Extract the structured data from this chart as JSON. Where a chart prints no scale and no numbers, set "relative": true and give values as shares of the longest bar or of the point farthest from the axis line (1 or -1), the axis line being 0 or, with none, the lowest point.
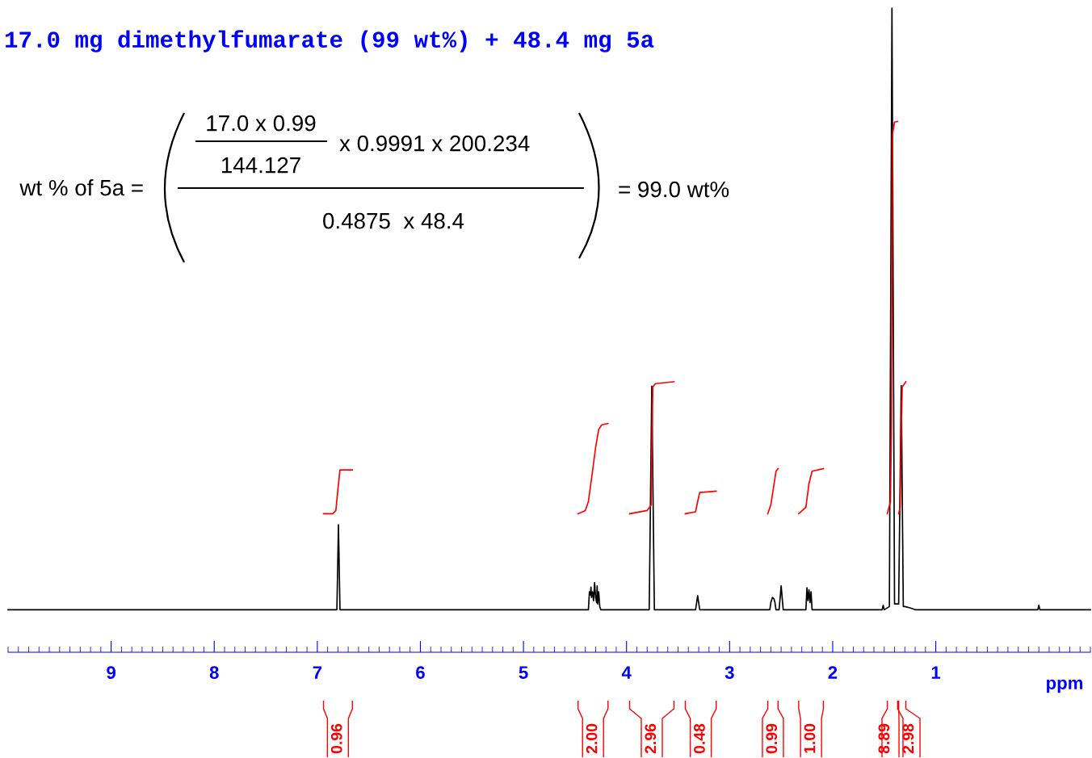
{
  "chart_data": {
    "type": "line",
    "relative": true,
    "title": "17.0 mg dimethylfumarate (99 wt%) + 48.4 mg 5a",
    "xlabel": "ppm",
    "xlim": [
      10.0,
      -0.5
    ],
    "xticks": [
      9,
      8,
      7,
      6,
      5,
      4,
      3,
      2,
      1
    ],
    "tick_labels": "x",
    "annotations": [
      "wt % of 5a =",
      "17.0 x 0.99",
      "144.127",
      "x 0.9991 x 200.234",
      "0.4875  x 48.4",
      "= 99.0 wt%",
      "0.96",
      "2.00",
      "2.96",
      "0.48",
      "0.99",
      "1.00",
      "8.89",
      "2.98"
    ],
    "series": [
      {
        "color": "#000000",
        "x": [
          10.0,
          7.0,
          6.81,
          6.795,
          6.78,
          4.4,
          4.37,
          4.36,
          4.35,
          4.345,
          4.34,
          4.33,
          4.32,
          4.31,
          4.3,
          4.29,
          4.285,
          4.28,
          4.27,
          4.26,
          4.25,
          3.78,
          3.755,
          3.73,
          3.33,
          3.31,
          3.29,
          2.61,
          2.6,
          2.585,
          2.57,
          2.56,
          2.55,
          2.52,
          2.5,
          2.48,
          2.26,
          2.25,
          2.24,
          2.23,
          2.22,
          2.21,
          2.2,
          1.52,
          1.51,
          1.5,
          1.45,
          1.425,
          1.4,
          1.36,
          1.335,
          1.315,
          1.3,
          1.25,
          1.2,
          0.01,
          0.0,
          -0.01,
          -0.5
        ],
        "values": [
          0.066,
          0.066,
          0.066,
          0.198,
          0.066,
          0.066,
          0.066,
          0.094,
          0.089,
          0.101,
          0.085,
          0.094,
          0.08,
          0.108,
          0.085,
          0.077,
          0.103,
          0.075,
          0.094,
          0.071,
          0.066,
          0.066,
          0.413,
          0.066,
          0.066,
          0.088,
          0.066,
          0.066,
          0.077,
          0.085,
          0.083,
          0.077,
          0.066,
          0.066,
          0.103,
          0.066,
          0.066,
          0.1,
          0.08,
          0.097,
          0.077,
          0.094,
          0.066,
          0.066,
          0.073,
          0.066,
          0.071,
          1.0,
          0.075,
          0.075,
          0.414,
          0.071,
          0.071,
          0.069,
          0.066,
          0.066,
          0.073,
          0.066,
          0.066
        ]
      },
      {
        "color": "#ff0000",
        "x": [
          6.94,
          6.85,
          6.82,
          6.8,
          6.78,
          6.66
        ],
        "values": [
          0.215,
          0.215,
          0.22,
          0.253,
          0.283,
          0.283
        ]
      },
      {
        "color": "#ff0000",
        "x": [
          4.47,
          4.4,
          4.37,
          4.33,
          4.3,
          4.27,
          4.24,
          4.18
        ],
        "values": [
          0.215,
          0.22,
          0.234,
          0.281,
          0.318,
          0.346,
          0.353,
          0.355
        ]
      },
      {
        "color": "#ff0000",
        "x": [
          3.97,
          3.8,
          3.76,
          3.755,
          3.745,
          3.72,
          3.54
        ],
        "values": [
          0.215,
          0.22,
          0.229,
          0.309,
          0.412,
          0.417,
          0.42
        ]
      },
      {
        "color": "#ff0000",
        "x": [
          3.43,
          3.33,
          3.31,
          3.29,
          3.13
        ],
        "values": [
          0.215,
          0.218,
          0.234,
          0.248,
          0.25
        ]
      },
      {
        "color": "#ff0000",
        "x": [
          2.63,
          2.6,
          2.55,
          2.53
        ],
        "values": [
          0.215,
          0.229,
          0.281,
          0.285
        ]
      },
      {
        "color": "#ff0000",
        "x": [
          2.33,
          2.26,
          2.23,
          2.2,
          2.09
        ],
        "values": [
          0.215,
          0.225,
          0.262,
          0.281,
          0.285
        ]
      },
      {
        "color": "#ff0000",
        "x": [
          1.47,
          1.44,
          1.43,
          1.425,
          1.42,
          1.4,
          1.37
        ],
        "values": [
          0.215,
          0.234,
          0.346,
          0.626,
          0.804,
          0.823,
          0.824
        ]
      },
      {
        "color": "#ff0000",
        "x": [
          1.36,
          1.345,
          1.335,
          1.325,
          1.29
        ],
        "values": [
          0.215,
          0.225,
          0.346,
          0.412,
          0.42
        ]
      }
    ]
  }
}
